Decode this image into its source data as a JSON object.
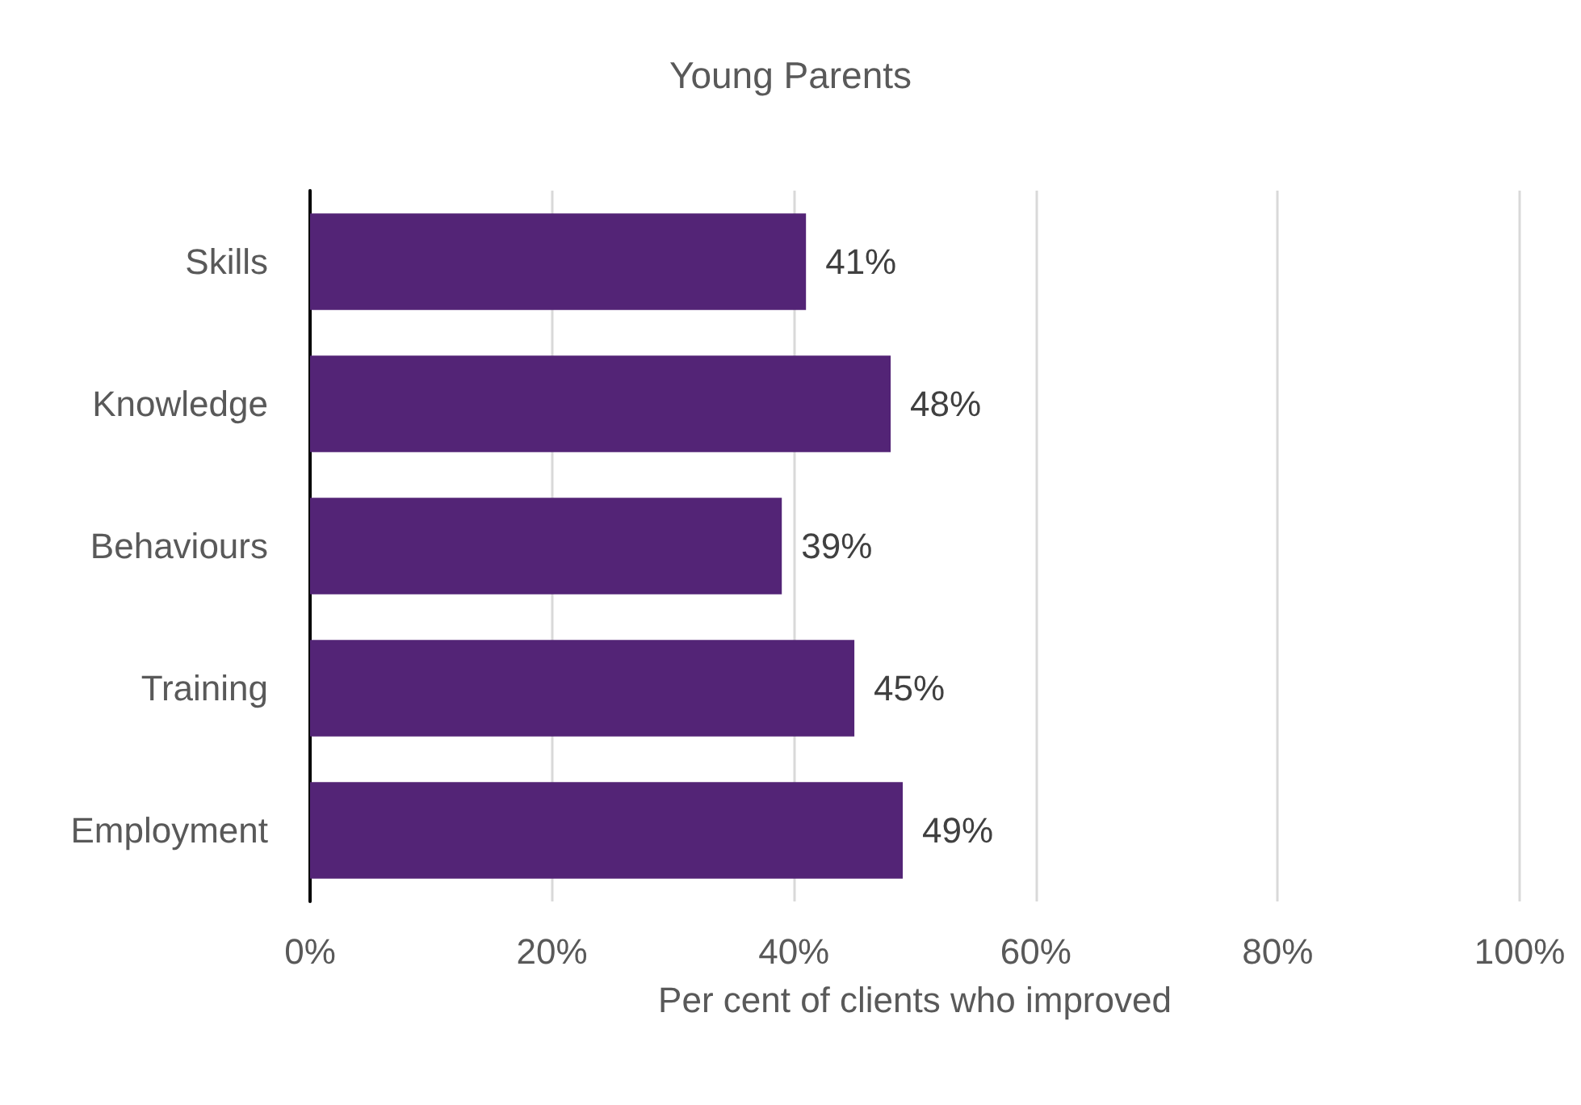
{
  "chart_data": {
    "type": "bar",
    "orientation": "horizontal",
    "title": "Young Parents",
    "xlabel": "Per cent of clients who improved",
    "categories": [
      "Skills",
      "Knowledge",
      "Behaviours",
      "Training",
      "Employment"
    ],
    "values": [
      41,
      48,
      39,
      45,
      49
    ],
    "color": "#532476",
    "value_labels": [
      "41%",
      "48%",
      "39%",
      "45%",
      "49%"
    ],
    "xlim": [
      0,
      100
    ],
    "xticks": [
      {
        "value": 0,
        "label": "0%"
      },
      {
        "value": 20,
        "label": "20%"
      },
      {
        "value": 40,
        "label": "40%"
      },
      {
        "value": 60,
        "label": "60%"
      },
      {
        "value": 80,
        "label": "80%"
      },
      {
        "value": 100,
        "label": "100%"
      }
    ],
    "grid": "x"
  }
}
